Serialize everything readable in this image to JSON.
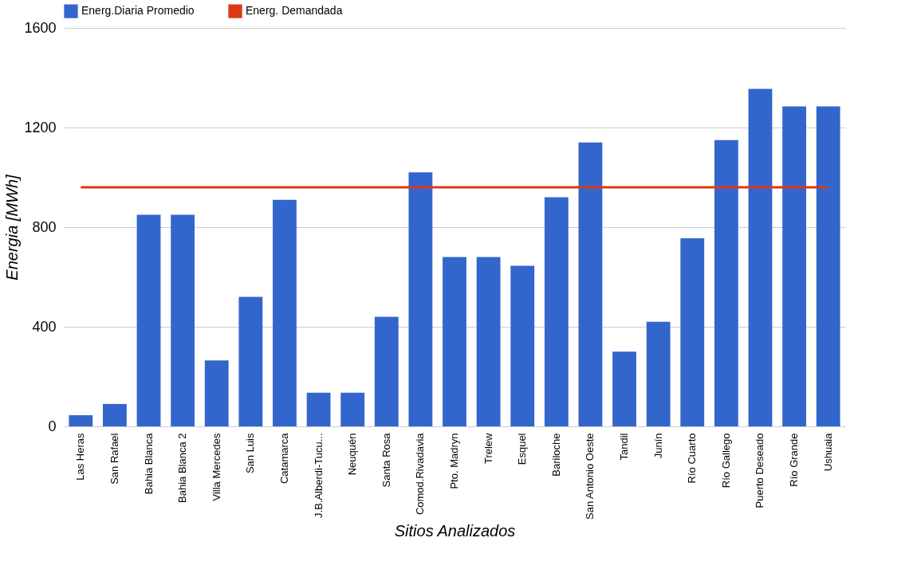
{
  "chart_data": {
    "type": "bar",
    "xlabel": "Sitios Analizados",
    "ylabel": "Energia [MWh]",
    "categories": [
      "Las Heras",
      "San Rafael",
      "Bahia Blanca",
      "Bahia Blanca 2",
      "Villa Mercedes",
      "San Luis",
      "Catamarca",
      "J.B.Alberdi-Tucu...",
      "Neuquén",
      "Santa Rosa",
      "Comod.Rivadavia",
      "Pto. Madryn",
      "Trelew",
      "Esquel",
      "Bariloche",
      "San Antonio Oeste",
      "Tandil",
      "Junín",
      "Río Cuarto",
      "Río Gallego",
      "Puerto Deseado",
      "Río Grande",
      "Ushuaia"
    ],
    "series": [
      {
        "name": "Energ.Diaria Promedio",
        "color": "#3366cc",
        "values": [
          45,
          90,
          850,
          850,
          265,
          520,
          910,
          135,
          135,
          440,
          1020,
          680,
          680,
          645,
          920,
          1140,
          300,
          420,
          755,
          1150,
          1355,
          1285,
          1285
        ]
      },
      {
        "name": "Energ. Demandada",
        "type": "line",
        "color": "#dc3912",
        "values": [
          960,
          960,
          960,
          960,
          960,
          960,
          960,
          960,
          960,
          960,
          960,
          960,
          960,
          960,
          960,
          960,
          960,
          960,
          960,
          960,
          960,
          960,
          960
        ]
      }
    ],
    "ylim": [
      0,
      1600
    ],
    "yticks": [
      0,
      400,
      800,
      1200,
      1600
    ],
    "grid": "y",
    "legend": "top left"
  }
}
